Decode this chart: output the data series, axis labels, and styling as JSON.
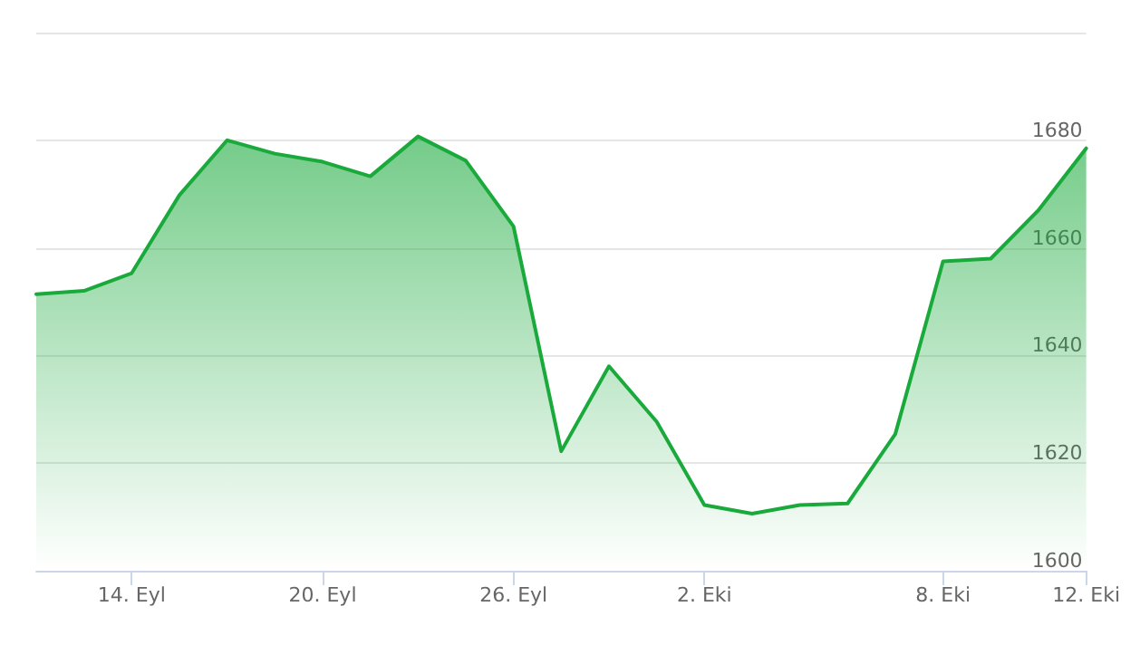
{
  "chart_data": {
    "type": "area",
    "categories": [
      null,
      null,
      "14. Eyl",
      null,
      null,
      null,
      "20. Eyl",
      null,
      null,
      null,
      "26. Eyl",
      null,
      null,
      null,
      "2. Eki",
      null,
      null,
      null,
      null,
      "8. Eki",
      null,
      null,
      "12. Eki"
    ],
    "series": [
      {
        "color": "#1aaa3c",
        "values": [
          1651.4,
          1652,
          1655.3,
          1669.8,
          1680,
          1677.5,
          1676,
          1673.3,
          1680.7,
          1676.2,
          1664,
          1622.2,
          1638,
          1627.7,
          1612.2,
          1610.6,
          1612.2,
          1612.5,
          1625.4,
          1657.5,
          1658,
          1667,
          1678.5
        ]
      }
    ],
    "ylim": [
      1600,
      1700
    ],
    "yticks": [
      1600,
      1620,
      1640,
      1660,
      1680,
      {
        "value": 1700,
        "label": null
      }
    ],
    "grid": "y",
    "marker": "none",
    "line_style": "solid"
  }
}
